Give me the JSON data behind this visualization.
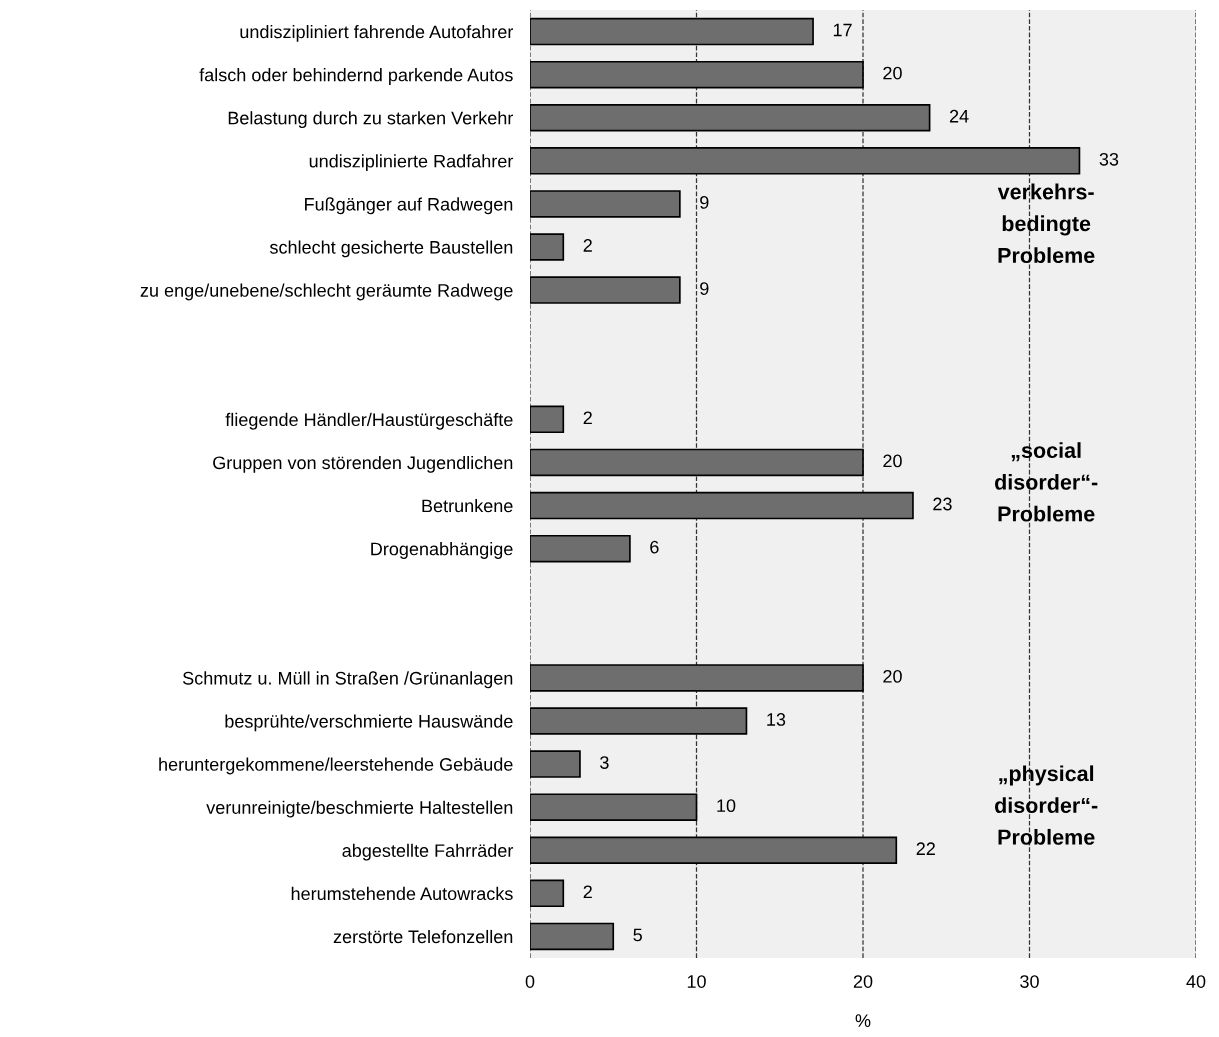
{
  "chart_data": {
    "type": "bar",
    "orientation": "horizontal",
    "xlabel": "%",
    "categories": [
      "undiszipliniert fahrende Autofahrer",
      "falsch oder behindernd parkende Autos",
      "Belastung durch zu starken Verkehr",
      "undisziplinierte Radfahrer",
      "Fußgänger auf Radwegen",
      "schlecht gesicherte Baustellen",
      "zu enge/unebene/schlecht geräumte Radwege",
      null,
      null,
      "fliegende Händler/Haustürgeschäfte",
      "Gruppen von störenden Jugendlichen",
      "Betrunkene",
      "Drogenabhängige",
      null,
      null,
      "Schmutz u. Müll in Straßen /Grünanlagen",
      "besprühte/verschmierte Hauswände",
      "heruntergekommene/leerstehende Gebäude",
      "verunreinigte/beschmierte Haltestellen",
      "abgestellte Fahrräder",
      "herumstehende Autowracks",
      "zerstörte Telefonzellen"
    ],
    "values": [
      17,
      20,
      24,
      33,
      9,
      2,
      9,
      null,
      null,
      2,
      20,
      23,
      6,
      null,
      null,
      20,
      13,
      3,
      10,
      22,
      2,
      5
    ],
    "color": "#6e6e6e",
    "data_labels": true,
    "xlim": [
      0,
      40
    ],
    "xticks": [
      0,
      10,
      20,
      30,
      40
    ],
    "grid": "x",
    "annotations": [
      "verkehrs-\nbedingte\nProbleme",
      "„social\ndisorder“-\nProbleme",
      "„physical\ndisorder“-\nProbleme"
    ]
  }
}
